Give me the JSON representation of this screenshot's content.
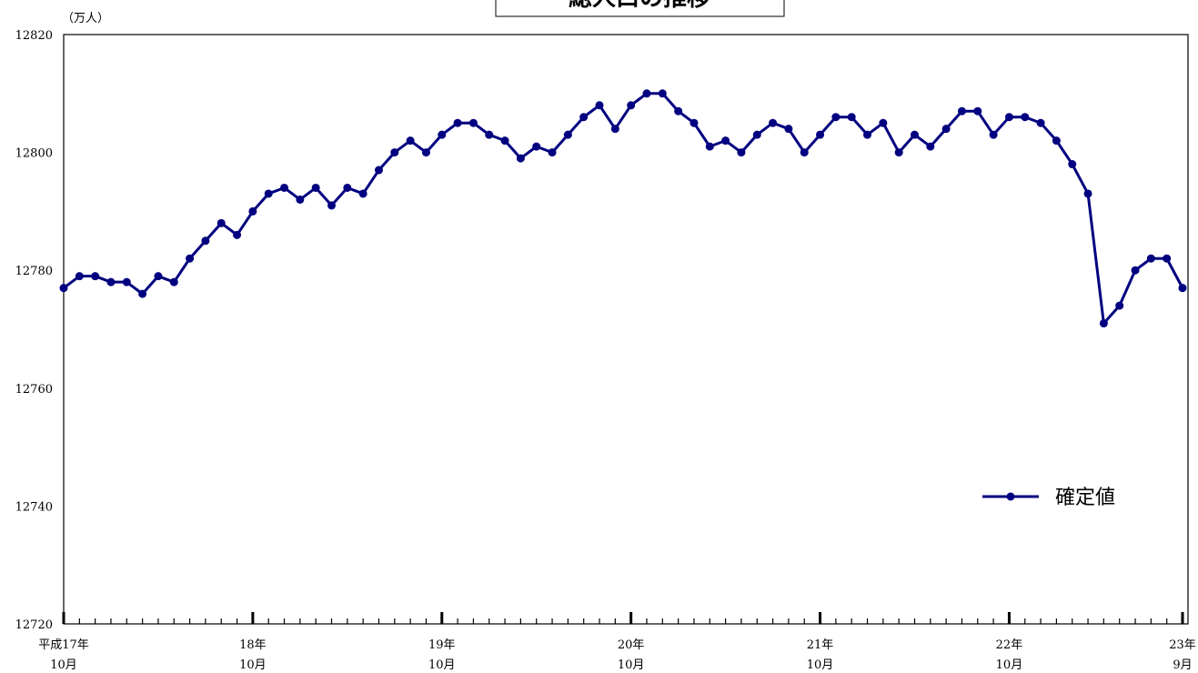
{
  "chart_data": {
    "type": "line",
    "title": "総人口の推移",
    "unit_label": "（万人）",
    "ylim": [
      12720,
      12820
    ],
    "y_ticks": [
      12720,
      12740,
      12760,
      12780,
      12800,
      12820
    ],
    "x_major_labels": [
      {
        "index": 0,
        "line1": "平成17年",
        "line2": "10月"
      },
      {
        "index": 12,
        "line1": "18年",
        "line2": "10月"
      },
      {
        "index": 24,
        "line1": "19年",
        "line2": "10月"
      },
      {
        "index": 36,
        "line1": "20年",
        "line2": "10月"
      },
      {
        "index": 48,
        "line1": "21年",
        "line2": "10月"
      },
      {
        "index": 60,
        "line1": "22年",
        "line2": "10月"
      },
      {
        "index": 71,
        "line1": "23年",
        "line2": "9月"
      }
    ],
    "grid": false,
    "legend_position": "bottom-right",
    "series": [
      {
        "name": "確定値",
        "color": "#000080",
        "values": [
          12777,
          12779,
          12779,
          12778,
          12778,
          12776,
          12779,
          12778,
          12782,
          12785,
          12788,
          12786,
          12790,
          12793,
          12794,
          12792,
          12794,
          12791,
          12794,
          12793,
          12797,
          12800,
          12802,
          12800,
          12803,
          12805,
          12805,
          12803,
          12802,
          12799,
          12801,
          12800,
          12803,
          12806,
          12808,
          12804,
          12808,
          12810,
          12810,
          12807,
          12805,
          12801,
          12802,
          12800,
          12803,
          12805,
          12804,
          12800,
          12803,
          12806,
          12806,
          12803,
          12805,
          12800,
          12803,
          12801,
          12804,
          12807,
          12807,
          12803,
          12806,
          12806,
          12805,
          12802,
          12798,
          12793,
          12771,
          12774,
          12780,
          12782,
          12782,
          12777
        ]
      }
    ]
  }
}
